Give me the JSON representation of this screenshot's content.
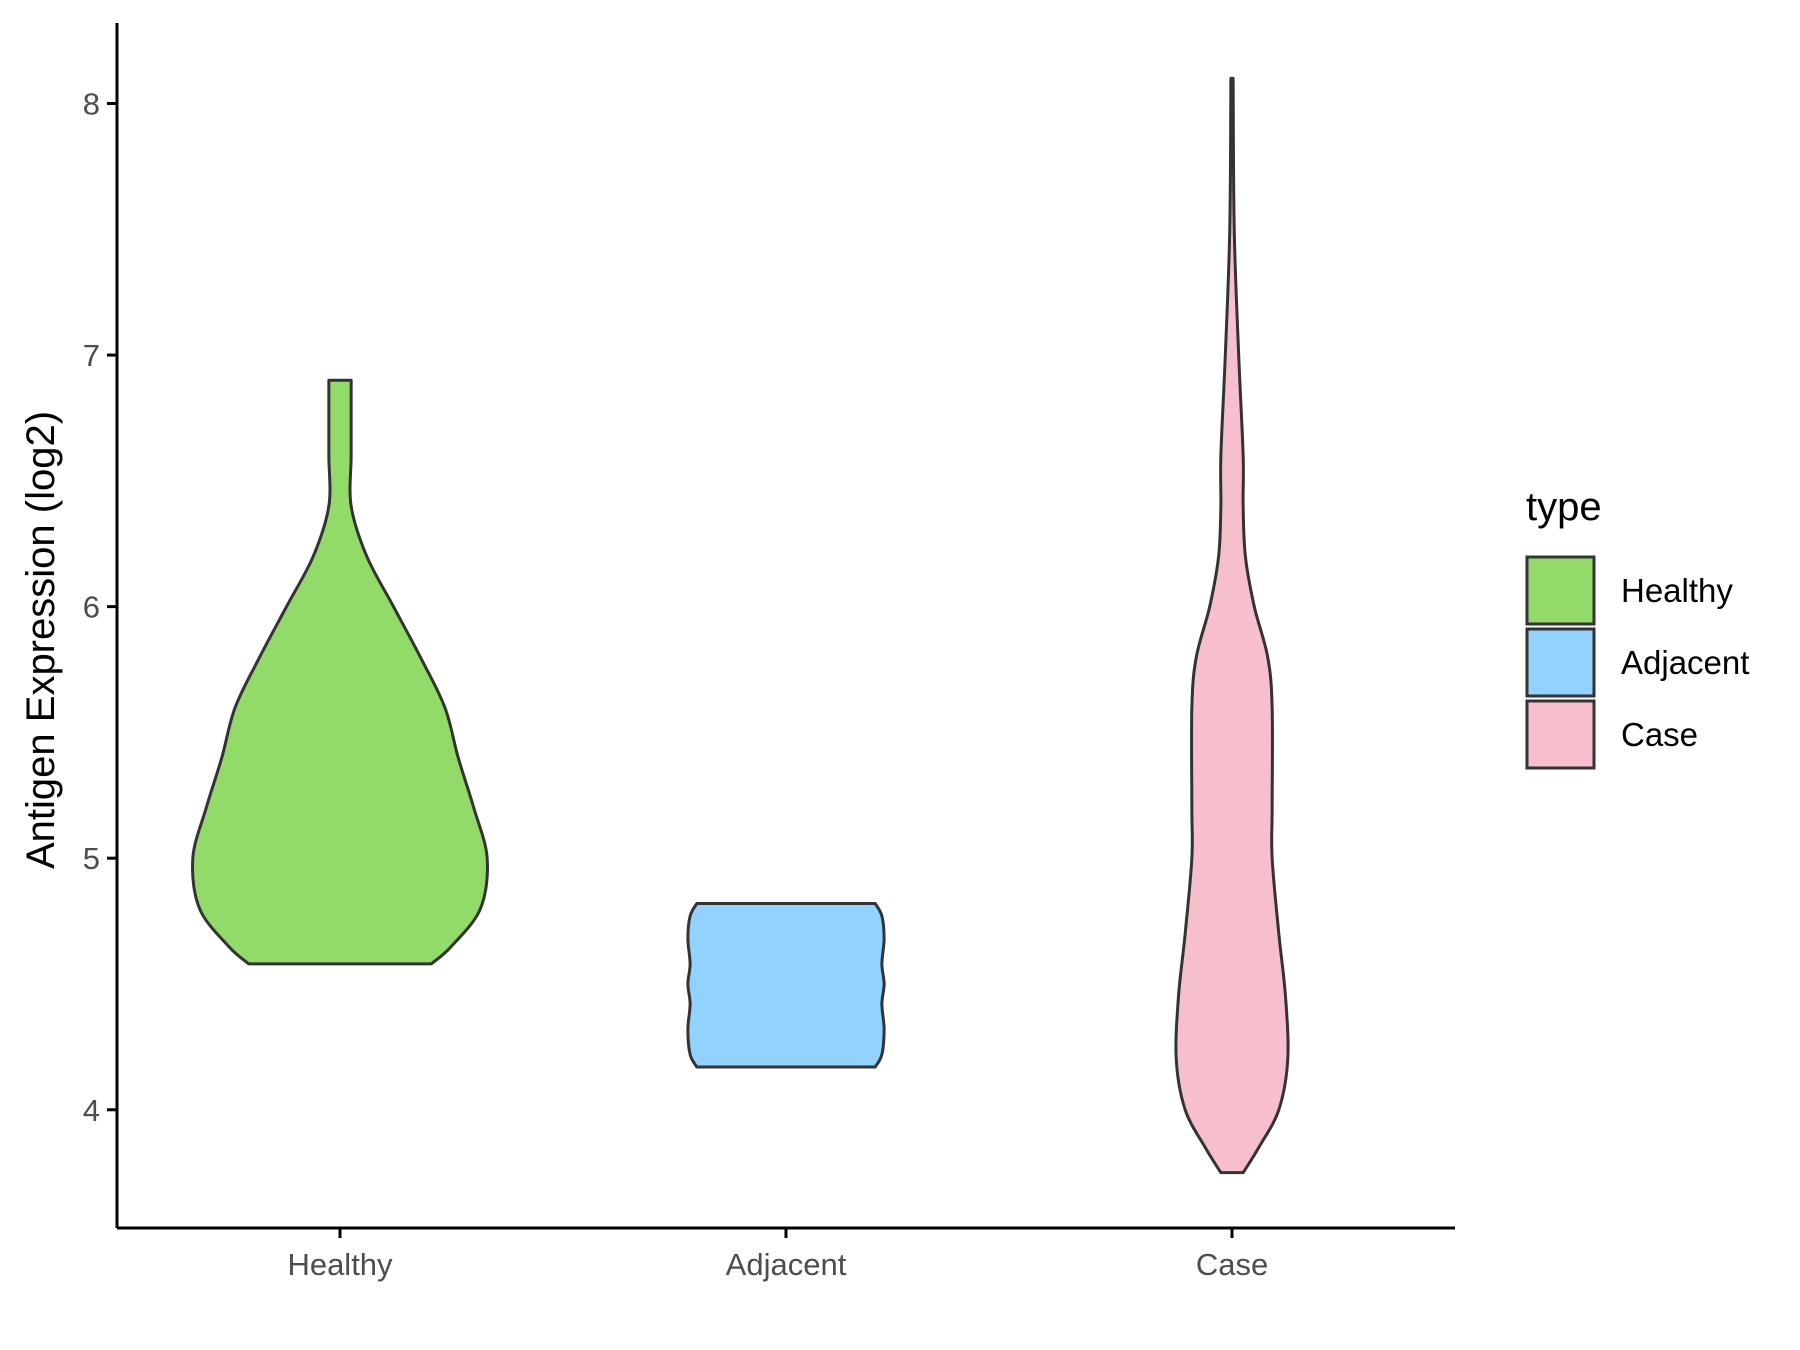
{
  "chart_data": {
    "type": "violin",
    "title": "",
    "xlabel": "",
    "ylabel": "Antigen Expression (log2)",
    "ylim": [
      3.53,
      8.32
    ],
    "yticks": [
      4,
      5,
      6,
      7,
      8
    ],
    "categories": [
      "Healthy",
      "Adjacent",
      "Case"
    ],
    "legend": {
      "title": "type",
      "position": "right"
    },
    "grid": false,
    "series": [
      {
        "name": "Healthy",
        "color": "#93DB69",
        "min": 4.58,
        "max": 6.9,
        "profile": [
          [
            4.58,
            0.41
          ],
          [
            4.65,
            0.5
          ],
          [
            4.8,
            0.63
          ],
          [
            5.0,
            0.66
          ],
          [
            5.2,
            0.6
          ],
          [
            5.4,
            0.53
          ],
          [
            5.6,
            0.47
          ],
          [
            5.8,
            0.36
          ],
          [
            6.0,
            0.24
          ],
          [
            6.2,
            0.12
          ],
          [
            6.4,
            0.05
          ],
          [
            6.6,
            0.05
          ],
          [
            6.8,
            0.05
          ],
          [
            6.9,
            0.05
          ]
        ]
      },
      {
        "name": "Adjacent",
        "color": "#92D2FF",
        "min": 4.17,
        "max": 4.82,
        "profile": [
          [
            4.17,
            0.4
          ],
          [
            4.22,
            0.43
          ],
          [
            4.32,
            0.44
          ],
          [
            4.42,
            0.43
          ],
          [
            4.5,
            0.44
          ],
          [
            4.58,
            0.43
          ],
          [
            4.68,
            0.44
          ],
          [
            4.77,
            0.43
          ],
          [
            4.82,
            0.4
          ]
        ]
      },
      {
        "name": "Case",
        "color": "#F7BFCB",
        "min": 3.75,
        "max": 8.1,
        "profile": [
          [
            3.75,
            0.05
          ],
          [
            3.85,
            0.12
          ],
          [
            4.0,
            0.21
          ],
          [
            4.2,
            0.25
          ],
          [
            4.45,
            0.24
          ],
          [
            4.7,
            0.21
          ],
          [
            5.0,
            0.18
          ],
          [
            5.2,
            0.18
          ],
          [
            5.6,
            0.18
          ],
          [
            5.8,
            0.16
          ],
          [
            6.0,
            0.1
          ],
          [
            6.2,
            0.06
          ],
          [
            6.4,
            0.05
          ],
          [
            6.6,
            0.05
          ],
          [
            7.0,
            0.03
          ],
          [
            7.5,
            0.01
          ],
          [
            8.1,
            0.005
          ]
        ]
      }
    ]
  }
}
